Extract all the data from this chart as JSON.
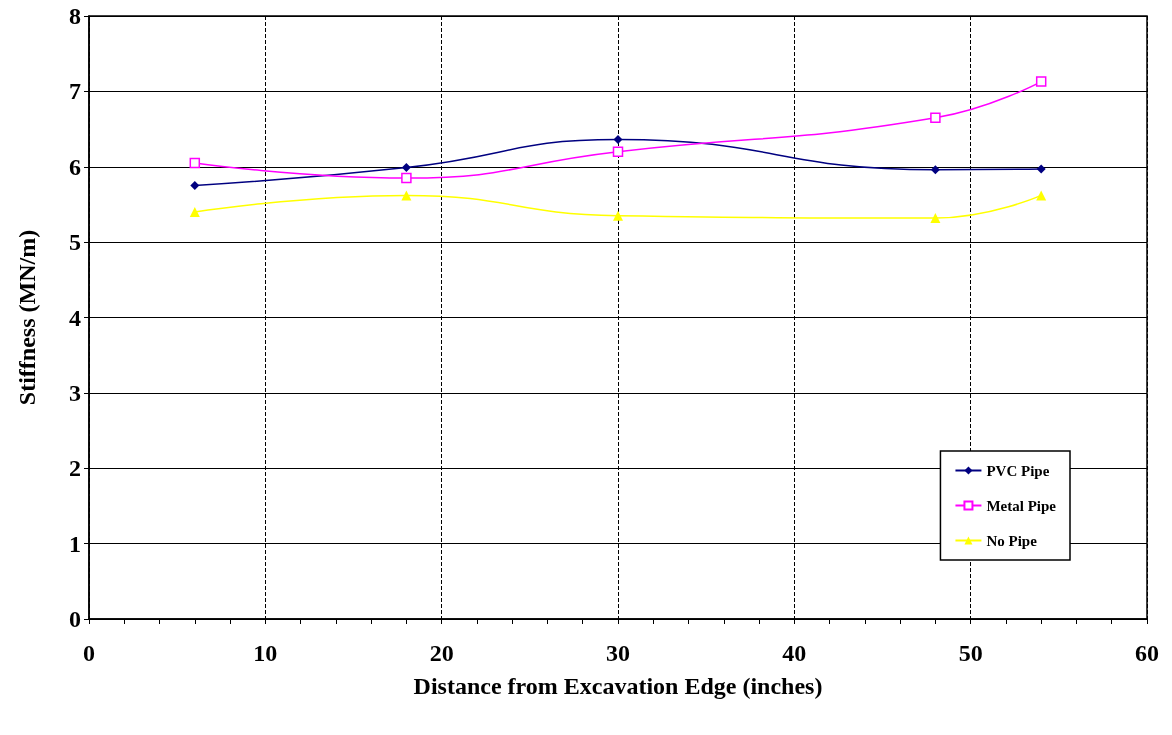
{
  "chart_data": {
    "type": "line",
    "xlabel": "Distance from Excavation Edge (inches)",
    "ylabel": "Stiffness (MN/m)",
    "x": [
      6,
      18,
      30,
      48,
      54
    ],
    "series": [
      {
        "name": "PVC Pipe",
        "color": "#000080",
        "marker": "diamond",
        "values": [
          5.75,
          5.99,
          6.36,
          5.96,
          5.97
        ]
      },
      {
        "name": "Metal Pipe",
        "color": "#ff00ff",
        "marker": "square",
        "values": [
          6.05,
          5.85,
          6.2,
          6.65,
          7.13
        ]
      },
      {
        "name": "No Pipe",
        "color": "#ffff00",
        "marker": "triangle",
        "values": [
          5.4,
          5.62,
          5.35,
          5.32,
          5.62
        ]
      }
    ],
    "xlim": [
      0,
      60
    ],
    "xticks": [
      0,
      10,
      20,
      30,
      40,
      50,
      60
    ],
    "ylim": [
      0,
      8
    ],
    "yticks": [
      0,
      1,
      2,
      3,
      4,
      5,
      6,
      7,
      8
    ],
    "grid": true,
    "legend": "bottom right"
  }
}
